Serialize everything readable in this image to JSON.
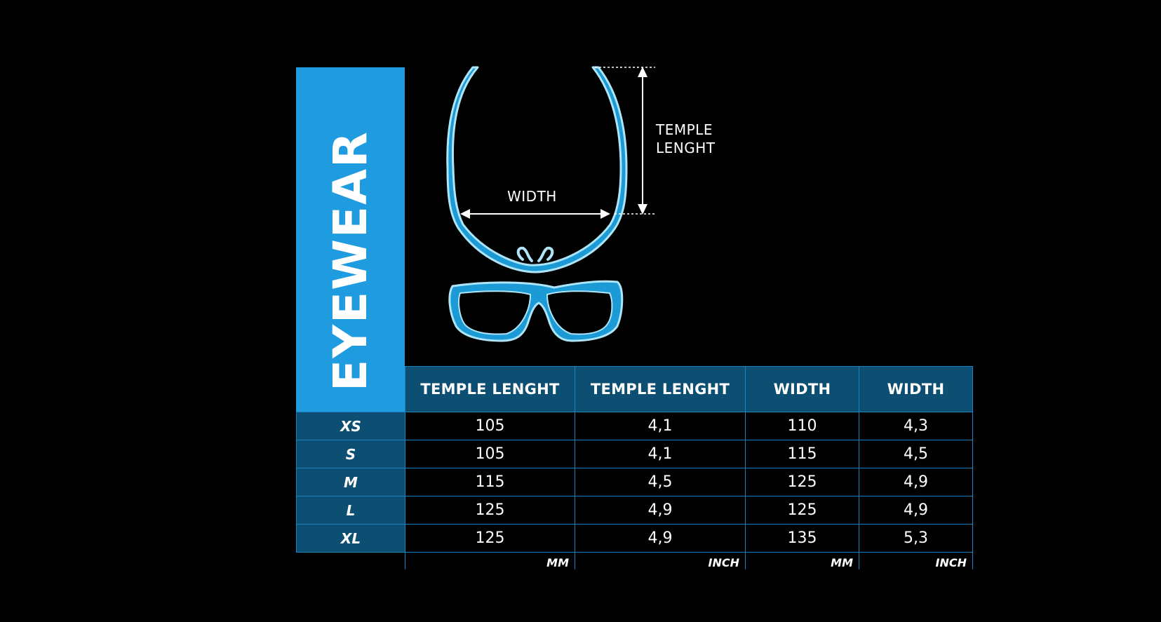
{
  "panel": {
    "title": "EYEWEAR",
    "accent_color": "#1f9be0",
    "header_color": "#0d4f72",
    "border_color": "#1a82bf"
  },
  "diagram": {
    "temple_label_line1": "TEMPLE",
    "temple_label_line2": "LENGHT",
    "width_label": "WIDTH",
    "stroke_color": "#aee4f8",
    "fill_color": "#1c9ad6"
  },
  "table": {
    "headers": [
      "TEMPLE LENGHT",
      "TEMPLE LENGHT",
      "WIDTH",
      "WIDTH"
    ],
    "units": [
      "MM",
      "INCH",
      "MM",
      "INCH"
    ],
    "rows": [
      {
        "size": "XS",
        "values": [
          "105",
          "4,1",
          "110",
          "4,3"
        ]
      },
      {
        "size": "S",
        "values": [
          "105",
          "4,1",
          "115",
          "4,5"
        ]
      },
      {
        "size": "M",
        "values": [
          "115",
          "4,5",
          "125",
          "4,9"
        ]
      },
      {
        "size": "L",
        "values": [
          "125",
          "4,9",
          "125",
          "4,9"
        ]
      },
      {
        "size": "XL",
        "values": [
          "125",
          "4,9",
          "135",
          "5,3"
        ]
      }
    ]
  }
}
